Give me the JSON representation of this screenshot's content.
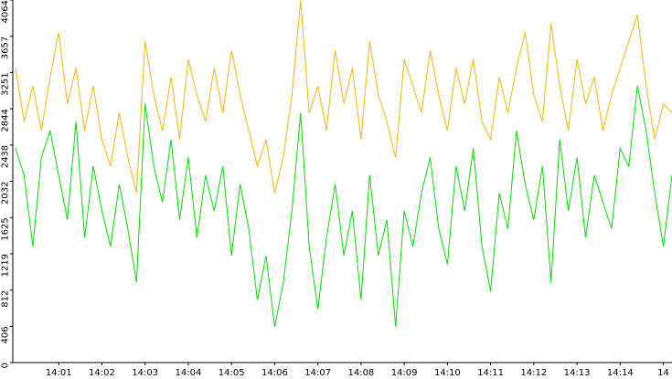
{
  "chart_data": {
    "type": "line",
    "x": [
      0,
      0.2,
      0.4,
      0.6,
      0.8,
      1,
      1.2,
      1.4,
      1.6,
      1.8,
      2,
      2.2,
      2.4,
      2.6,
      2.8,
      3,
      3.2,
      3.4,
      3.6,
      3.8,
      4,
      4.2,
      4.4,
      4.6,
      4.8,
      5,
      5.2,
      5.4,
      5.6,
      5.8,
      6,
      6.2,
      6.4,
      6.6,
      6.8,
      7,
      7.2,
      7.4,
      7.6,
      7.8,
      8,
      8.2,
      8.4,
      8.6,
      8.8,
      9,
      9.2,
      9.4,
      9.6,
      9.8,
      10,
      10.2,
      10.4,
      10.6,
      10.8,
      11,
      11.2,
      11.4,
      11.6,
      11.8,
      12,
      12.2,
      12.4,
      12.6,
      12.8,
      13,
      13.2,
      13.4,
      13.6,
      13.8,
      14,
      14.2,
      14.4,
      14.6,
      14.8,
      15,
      15.2
    ],
    "series": [
      {
        "color": "#f2b600",
        "values": [
          3300,
          2700,
          3100,
          2600,
          3200,
          3700,
          2900,
          3300,
          2600,
          3100,
          2500,
          2200,
          2800,
          2300,
          1900,
          3600,
          3000,
          2600,
          3200,
          2500,
          3400,
          3000,
          2700,
          3300,
          2800,
          3500,
          3000,
          2600,
          2200,
          2500,
          1900,
          2300,
          3000,
          4060,
          2800,
          3100,
          2600,
          3500,
          2900,
          3300,
          2500,
          3600,
          3000,
          2700,
          2300,
          3400,
          3100,
          2800,
          3500,
          3000,
          2600,
          3300,
          2900,
          3400,
          2700,
          2500,
          3200,
          2800,
          3300,
          3700,
          3000,
          2700,
          3800,
          3100,
          2600,
          3400,
          2900,
          3200,
          2600,
          3000,
          3300,
          3600,
          3900,
          3100,
          2500,
          2900,
          2800
        ]
      },
      {
        "color": "#00dd00",
        "values": [
          2400,
          2100,
          1300,
          2300,
          2600,
          2100,
          1600,
          2700,
          1400,
          2200,
          1700,
          1300,
          2000,
          1500,
          900,
          2900,
          2200,
          1800,
          2500,
          1600,
          2300,
          1400,
          2100,
          1700,
          2200,
          1200,
          2000,
          1500,
          700,
          1200,
          400,
          900,
          1700,
          2800,
          1300,
          600,
          1400,
          2000,
          1200,
          1700,
          700,
          2100,
          1200,
          1600,
          400,
          1700,
          1300,
          1900,
          2300,
          1500,
          1100,
          2200,
          1700,
          2400,
          1300,
          800,
          1900,
          1500,
          2600,
          2000,
          1600,
          2200,
          900,
          2500,
          1700,
          2300,
          1400,
          2100,
          1800,
          1500,
          2400,
          2200,
          3100,
          2600,
          1900,
          1300,
          2100
        ]
      }
    ],
    "xlim": [
      0,
      15.2
    ],
    "xticks": [
      {
        "value": 1,
        "label": "14:01"
      },
      {
        "value": 2,
        "label": "14:02"
      },
      {
        "value": 3,
        "label": "14:03"
      },
      {
        "value": 4,
        "label": "14:04"
      },
      {
        "value": 5,
        "label": "14:05"
      },
      {
        "value": 6,
        "label": "14:06"
      },
      {
        "value": 7,
        "label": "14:07"
      },
      {
        "value": 8,
        "label": "14:08"
      },
      {
        "value": 9,
        "label": "14:09"
      },
      {
        "value": 10,
        "label": "14:10"
      },
      {
        "value": 11,
        "label": "14:11"
      },
      {
        "value": 12,
        "label": "14:12"
      },
      {
        "value": 13,
        "label": "14:13"
      },
      {
        "value": 14,
        "label": "14:14"
      },
      {
        "value": 15,
        "label": "14"
      }
    ],
    "ylim": [
      0,
      4064
    ],
    "yticks": [
      0,
      406,
      812,
      1219,
      1625,
      2032,
      2438,
      2844,
      3251,
      3657,
      4064
    ],
    "grid": false
  }
}
